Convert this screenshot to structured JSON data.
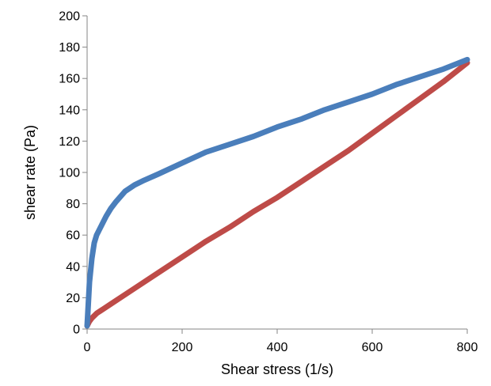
{
  "chart_data": {
    "type": "line",
    "title": "",
    "xlabel": "Shear stress (1/s)",
    "ylabel": "shear rate (Pa)",
    "xlim": [
      0,
      800
    ],
    "ylim": [
      0,
      200
    ],
    "xticks": [
      0,
      200,
      400,
      600,
      800
    ],
    "yticks": [
      0,
      20,
      40,
      60,
      80,
      100,
      120,
      140,
      160,
      180,
      200
    ],
    "grid": false,
    "legend": "none",
    "series": [
      {
        "color": "#4a7ebb",
        "x": [
          0,
          5,
          10,
          15,
          20,
          30,
          40,
          50,
          60,
          80,
          100,
          120,
          150,
          200,
          250,
          300,
          350,
          400,
          450,
          500,
          550,
          600,
          650,
          700,
          750,
          800
        ],
        "y": [
          2,
          30,
          45,
          55,
          60,
          66,
          72,
          77,
          81,
          88,
          92,
          95,
          99,
          106,
          113,
          118,
          123,
          129,
          134,
          140,
          145,
          150,
          156,
          161,
          166,
          172
        ]
      },
      {
        "color": "#be4b48",
        "x": [
          0,
          5,
          10,
          20,
          50,
          100,
          150,
          200,
          250,
          300,
          350,
          400,
          450,
          500,
          550,
          600,
          650,
          700,
          750,
          800
        ],
        "y": [
          2,
          5,
          7,
          10,
          16,
          26,
          36,
          46,
          56,
          65,
          75,
          84,
          94,
          104,
          114,
          125,
          136,
          147,
          158,
          170
        ]
      }
    ]
  }
}
